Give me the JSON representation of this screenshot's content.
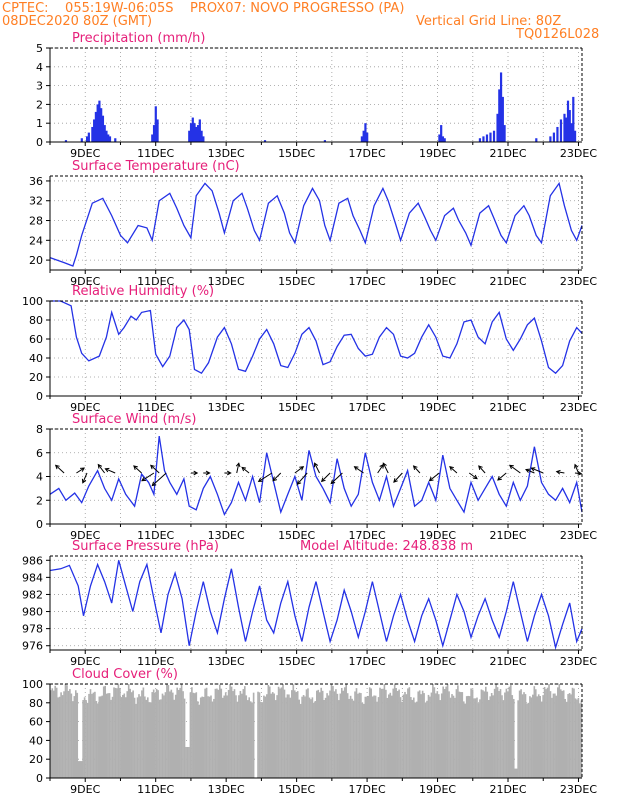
{
  "header": {
    "line1": "CPTEC:    055:19W-06:05S    PROX07: NOVO PROGRESSO (PA)",
    "line2": "08DEC2020 80Z (GMT)",
    "grid_note": "Vertical Grid Line: 80Z",
    "code": "TQ0126L028",
    "color": "#ff7f24"
  },
  "colors": {
    "title": "#e6207a",
    "line": "#2432e6",
    "bar": "#2432e6",
    "cloud": "#b0b0b0",
    "grid": "#9a9a9a"
  },
  "x_ticks": [
    "9DEC",
    "11DEC",
    "13DEC",
    "15DEC",
    "17DEC",
    "19DEC",
    "21DEC",
    "23DEC"
  ],
  "chart_data": [
    {
      "type": "bar",
      "title": "Precipitation (mm/h)",
      "ylim": [
        0,
        5
      ],
      "yticks": [
        "0",
        "1",
        "2",
        "3",
        "4",
        "5"
      ],
      "x": [
        8.45,
        8.9,
        9.05,
        9.1,
        9.2,
        9.25,
        9.3,
        9.35,
        9.4,
        9.45,
        9.5,
        9.55,
        9.6,
        9.65,
        9.7,
        9.85,
        10.9,
        10.95,
        11.0,
        11.05,
        11.95,
        12.0,
        12.05,
        12.1,
        12.15,
        12.2,
        12.25,
        12.3,
        12.35,
        14.1,
        15.8,
        16.85,
        16.9,
        16.95,
        17.0,
        19.05,
        19.1,
        19.15,
        19.2,
        20.2,
        20.3,
        20.4,
        20.5,
        20.6,
        20.7,
        20.75,
        20.8,
        20.85,
        20.9,
        21.8,
        22.2,
        22.3,
        22.4,
        22.5,
        22.6,
        22.65,
        22.7,
        22.75,
        22.8,
        22.85,
        22.9
      ],
      "values": [
        0.1,
        0.2,
        0.3,
        0.5,
        0.8,
        1.2,
        1.6,
        2.0,
        2.2,
        1.8,
        1.4,
        0.9,
        0.6,
        0.4,
        0.3,
        0.2,
        0.4,
        0.9,
        1.9,
        1.2,
        0.6,
        1.0,
        1.3,
        1.0,
        0.8,
        0.9,
        1.2,
        0.6,
        0.3,
        0.1,
        0.1,
        0.3,
        0.6,
        1.0,
        0.5,
        0.4,
        0.9,
        0.3,
        0.2,
        0.2,
        0.3,
        0.4,
        0.5,
        0.6,
        1.5,
        2.8,
        3.7,
        2.4,
        0.9,
        0.2,
        0.3,
        0.5,
        0.8,
        1.2,
        1.5,
        1.3,
        2.2,
        1.7,
        1.0,
        2.4,
        0.6
      ]
    },
    {
      "type": "line",
      "title": "Surface Temperature (nC)",
      "ylim": [
        18,
        37
      ],
      "yticks": [
        "20",
        "24",
        "28",
        "32",
        "36"
      ],
      "x": [
        8.0,
        8.4,
        8.65,
        8.75,
        8.9,
        9.2,
        9.5,
        9.75,
        10.0,
        10.2,
        10.5,
        10.75,
        10.9,
        11.1,
        11.4,
        11.6,
        11.8,
        12.0,
        12.15,
        12.4,
        12.6,
        12.8,
        12.95,
        13.2,
        13.45,
        13.6,
        13.8,
        13.95,
        14.2,
        14.45,
        14.65,
        14.8,
        14.95,
        15.2,
        15.45,
        15.65,
        15.8,
        15.95,
        16.2,
        16.45,
        16.6,
        16.8,
        16.95,
        17.2,
        17.45,
        17.6,
        17.8,
        17.95,
        18.2,
        18.45,
        18.65,
        18.8,
        18.95,
        19.2,
        19.45,
        19.6,
        19.8,
        19.95,
        20.2,
        20.45,
        20.6,
        20.8,
        20.95,
        21.2,
        21.45,
        21.6,
        21.8,
        21.95,
        22.2,
        22.45,
        22.6,
        22.8,
        22.95,
        23.1
      ],
      "values": [
        20.5,
        19.5,
        18.8,
        21.0,
        25.0,
        31.5,
        32.5,
        29.0,
        25.0,
        23.5,
        27.0,
        26.5,
        24.0,
        32.0,
        33.5,
        30.5,
        27.0,
        24.5,
        33.0,
        35.5,
        34.0,
        29.5,
        25.5,
        32.0,
        33.5,
        30.5,
        26.0,
        24.0,
        31.5,
        33.0,
        29.5,
        25.5,
        23.5,
        31.0,
        34.5,
        32.0,
        27.0,
        24.0,
        31.5,
        32.5,
        29.0,
        26.0,
        23.5,
        31.0,
        34.5,
        32.0,
        27.5,
        24.0,
        29.5,
        31.5,
        28.5,
        26.0,
        24.0,
        29.0,
        30.5,
        28.0,
        25.5,
        23.0,
        29.5,
        31.0,
        28.5,
        25.0,
        23.5,
        29.0,
        31.0,
        29.0,
        25.0,
        23.5,
        33.0,
        35.5,
        31.0,
        26.0,
        24.0,
        27.0
      ]
    },
    {
      "type": "line",
      "title": "Relative Humidity (%)",
      "ylim": [
        0,
        100
      ],
      "yticks": [
        "0",
        "20",
        "40",
        "60",
        "80",
        "100"
      ],
      "x": [
        8.0,
        8.3,
        8.6,
        8.75,
        8.9,
        9.1,
        9.4,
        9.6,
        9.75,
        9.95,
        10.1,
        10.3,
        10.45,
        10.6,
        10.85,
        11.0,
        11.2,
        11.4,
        11.6,
        11.8,
        11.95,
        12.1,
        12.3,
        12.5,
        12.75,
        12.95,
        13.15,
        13.35,
        13.55,
        13.75,
        13.95,
        14.15,
        14.35,
        14.55,
        14.75,
        14.95,
        15.15,
        15.35,
        15.55,
        15.75,
        15.95,
        16.15,
        16.35,
        16.55,
        16.75,
        16.95,
        17.15,
        17.35,
        17.55,
        17.75,
        17.95,
        18.15,
        18.35,
        18.55,
        18.75,
        18.95,
        19.15,
        19.35,
        19.55,
        19.75,
        19.95,
        20.15,
        20.35,
        20.55,
        20.75,
        20.95,
        21.15,
        21.35,
        21.55,
        21.75,
        21.95,
        22.15,
        22.35,
        22.55,
        22.75,
        22.95,
        23.1
      ],
      "values": [
        100,
        100,
        95,
        62,
        45,
        37,
        42,
        62,
        88,
        65,
        72,
        84,
        80,
        88,
        90,
        44,
        31,
        42,
        72,
        80,
        70,
        28,
        24,
        35,
        62,
        72,
        55,
        28,
        26,
        42,
        60,
        70,
        55,
        32,
        30,
        45,
        65,
        72,
        58,
        33,
        36,
        52,
        64,
        65,
        50,
        42,
        44,
        62,
        72,
        65,
        42,
        40,
        45,
        62,
        75,
        62,
        42,
        40,
        55,
        78,
        80,
        62,
        55,
        78,
        88,
        60,
        48,
        60,
        75,
        82,
        58,
        30,
        24,
        32,
        58,
        72,
        66
      ]
    },
    {
      "type": "line",
      "title": "Surface Wind (m/s)",
      "ylim": [
        0,
        8
      ],
      "yticks": [
        "0",
        "2",
        "4",
        "6",
        "8"
      ],
      "x": [
        8.0,
        8.25,
        8.45,
        8.7,
        8.9,
        9.1,
        9.35,
        9.55,
        9.75,
        9.95,
        10.15,
        10.4,
        10.6,
        10.8,
        10.95,
        11.1,
        11.25,
        11.4,
        11.6,
        11.8,
        11.95,
        12.15,
        12.35,
        12.55,
        12.75,
        12.95,
        13.15,
        13.35,
        13.55,
        13.75,
        13.95,
        14.15,
        14.35,
        14.55,
        14.75,
        14.95,
        15.15,
        15.35,
        15.55,
        15.75,
        15.95,
        16.15,
        16.35,
        16.55,
        16.75,
        16.95,
        17.15,
        17.35,
        17.55,
        17.75,
        17.95,
        18.15,
        18.35,
        18.55,
        18.75,
        18.95,
        19.15,
        19.35,
        19.55,
        19.75,
        19.95,
        20.15,
        20.35,
        20.55,
        20.75,
        20.95,
        21.15,
        21.35,
        21.55,
        21.75,
        21.95,
        22.15,
        22.35,
        22.55,
        22.75,
        22.95,
        23.1
      ],
      "values": [
        2.5,
        3.0,
        2.0,
        2.6,
        1.8,
        3.2,
        4.5,
        3.0,
        2.0,
        3.8,
        2.5,
        1.5,
        4.2,
        3.5,
        2.5,
        7.4,
        4.5,
        3.5,
        2.5,
        3.8,
        1.5,
        1.2,
        3.0,
        4.0,
        2.5,
        0.8,
        1.8,
        3.5,
        2.0,
        4.0,
        1.8,
        6.0,
        3.5,
        1.0,
        2.5,
        4.0,
        2.0,
        6.2,
        4.0,
        3.0,
        1.8,
        5.5,
        3.0,
        1.5,
        2.5,
        6.0,
        3.5,
        2.0,
        4.0,
        1.5,
        3.0,
        4.5,
        1.5,
        2.0,
        3.5,
        2.0,
        5.8,
        3.0,
        2.0,
        1.0,
        3.5,
        2.0,
        3.0,
        4.0,
        2.5,
        1.5,
        3.5,
        2.0,
        3.2,
        6.5,
        3.5,
        2.5,
        2.0,
        3.0,
        1.8,
        3.5,
        1.0
      ],
      "arrows": [
        {
          "x": 8.4,
          "u": -0.6,
          "v": 0.55
        },
        {
          "x": 8.75,
          "u": 0.55,
          "v": 0.35
        },
        {
          "x": 9.05,
          "u": -0.3,
          "v": -0.7
        },
        {
          "x": 9.55,
          "u": -0.45,
          "v": 0.6
        },
        {
          "x": 9.85,
          "u": -0.7,
          "v": 0.3
        },
        {
          "x": 10.6,
          "u": -0.55,
          "v": 0.5
        },
        {
          "x": 10.95,
          "u": -0.85,
          "v": -0.55
        },
        {
          "x": 11.1,
          "u": -0.6,
          "v": 0.55
        },
        {
          "x": 11.3,
          "u": -1.0,
          "v": -0.9
        },
        {
          "x": 12.0,
          "u": 0.45,
          "v": 0.0
        },
        {
          "x": 12.35,
          "u": 0.45,
          "v": 0.0
        },
        {
          "x": 12.95,
          "u": 0.45,
          "v": 0.0
        },
        {
          "x": 13.3,
          "u": 0.15,
          "v": 0.7
        },
        {
          "x": 13.65,
          "u": -0.5,
          "v": 0.4
        },
        {
          "x": 14.3,
          "u": -0.95,
          "v": -0.6
        },
        {
          "x": 14.55,
          "u": -0.55,
          "v": -0.55
        },
        {
          "x": 14.95,
          "u": 0.6,
          "v": 0.45
        },
        {
          "x": 15.3,
          "u": -0.7,
          "v": -0.8
        },
        {
          "x": 15.65,
          "u": -0.35,
          "v": 0.7
        },
        {
          "x": 15.95,
          "u": -0.6,
          "v": -0.6
        },
        {
          "x": 16.3,
          "u": -0.8,
          "v": -0.75
        },
        {
          "x": 16.9,
          "u": -0.65,
          "v": 0.45
        },
        {
          "x": 17.3,
          "u": 0.4,
          "v": 0.6
        },
        {
          "x": 17.6,
          "u": -0.35,
          "v": 0.7
        },
        {
          "x": 18.0,
          "u": -0.6,
          "v": -0.65
        },
        {
          "x": 18.5,
          "u": -0.45,
          "v": 0.5
        },
        {
          "x": 19.05,
          "u": -0.7,
          "v": -0.55
        },
        {
          "x": 19.55,
          "u": -0.5,
          "v": 0.45
        },
        {
          "x": 19.9,
          "u": 0.55,
          "v": -0.4
        },
        {
          "x": 20.35,
          "u": -0.45,
          "v": 0.5
        },
        {
          "x": 20.95,
          "u": -0.6,
          "v": -0.5
        },
        {
          "x": 21.35,
          "u": -0.75,
          "v": 0.55
        },
        {
          "x": 21.75,
          "u": -0.6,
          "v": 0.25
        },
        {
          "x": 22.0,
          "u": -0.85,
          "v": 0.35
        },
        {
          "x": 22.6,
          "u": -0.55,
          "v": 0.1
        },
        {
          "x": 22.9,
          "u": 0.45,
          "v": -0.05
        },
        {
          "x": 23.0,
          "u": -0.25,
          "v": 0.6
        }
      ]
    },
    {
      "type": "line",
      "title": "Surface Pressure (hPa)",
      "annotation": "Model Altitude: 248.838 m",
      "ylim": [
        975.5,
        986.5
      ],
      "yticks": [
        "976",
        "978",
        "980",
        "982",
        "984",
        "986"
      ],
      "x": [
        8.0,
        8.3,
        8.55,
        8.8,
        8.95,
        9.15,
        9.35,
        9.55,
        9.75,
        9.95,
        10.15,
        10.35,
        10.55,
        10.75,
        10.95,
        11.15,
        11.35,
        11.55,
        11.75,
        11.95,
        12.15,
        12.35,
        12.55,
        12.75,
        12.95,
        13.15,
        13.35,
        13.55,
        13.75,
        13.95,
        14.15,
        14.35,
        14.55,
        14.75,
        14.95,
        15.15,
        15.35,
        15.55,
        15.75,
        15.95,
        16.15,
        16.35,
        16.55,
        16.75,
        16.95,
        17.15,
        17.35,
        17.55,
        17.75,
        17.95,
        18.15,
        18.35,
        18.55,
        18.75,
        18.95,
        19.15,
        19.35,
        19.55,
        19.75,
        19.95,
        20.15,
        20.35,
        20.55,
        20.75,
        20.95,
        21.15,
        21.35,
        21.55,
        21.75,
        21.95,
        22.15,
        22.35,
        22.55,
        22.75,
        22.95,
        23.1
      ],
      "values": [
        984.8,
        985.0,
        985.4,
        983.0,
        979.5,
        983.0,
        985.5,
        983.5,
        981.0,
        986.0,
        983.0,
        980.0,
        983.5,
        985.5,
        981.5,
        977.5,
        982.0,
        984.5,
        981.5,
        976.0,
        980.0,
        983.5,
        980.0,
        977.5,
        981.5,
        985.0,
        980.5,
        976.5,
        980.0,
        983.0,
        979.0,
        977.5,
        981.0,
        983.5,
        979.5,
        976.5,
        980.5,
        983.5,
        980.0,
        976.5,
        979.0,
        982.5,
        980.0,
        977.0,
        980.0,
        983.5,
        980.0,
        976.5,
        979.5,
        982.0,
        979.0,
        976.5,
        979.5,
        981.5,
        979.0,
        976.0,
        979.0,
        982.0,
        980.0,
        977.0,
        979.5,
        981.5,
        979.0,
        977.0,
        980.0,
        983.5,
        980.0,
        976.5,
        979.5,
        982.0,
        979.5,
        975.8,
        978.5,
        981.0,
        976.5,
        978.0
      ]
    },
    {
      "type": "bar",
      "title": "Cloud Cover (%)",
      "ylim": [
        0,
        100
      ],
      "yticks": [
        "0",
        "20",
        "40",
        "60",
        "80",
        "100"
      ]
    }
  ]
}
